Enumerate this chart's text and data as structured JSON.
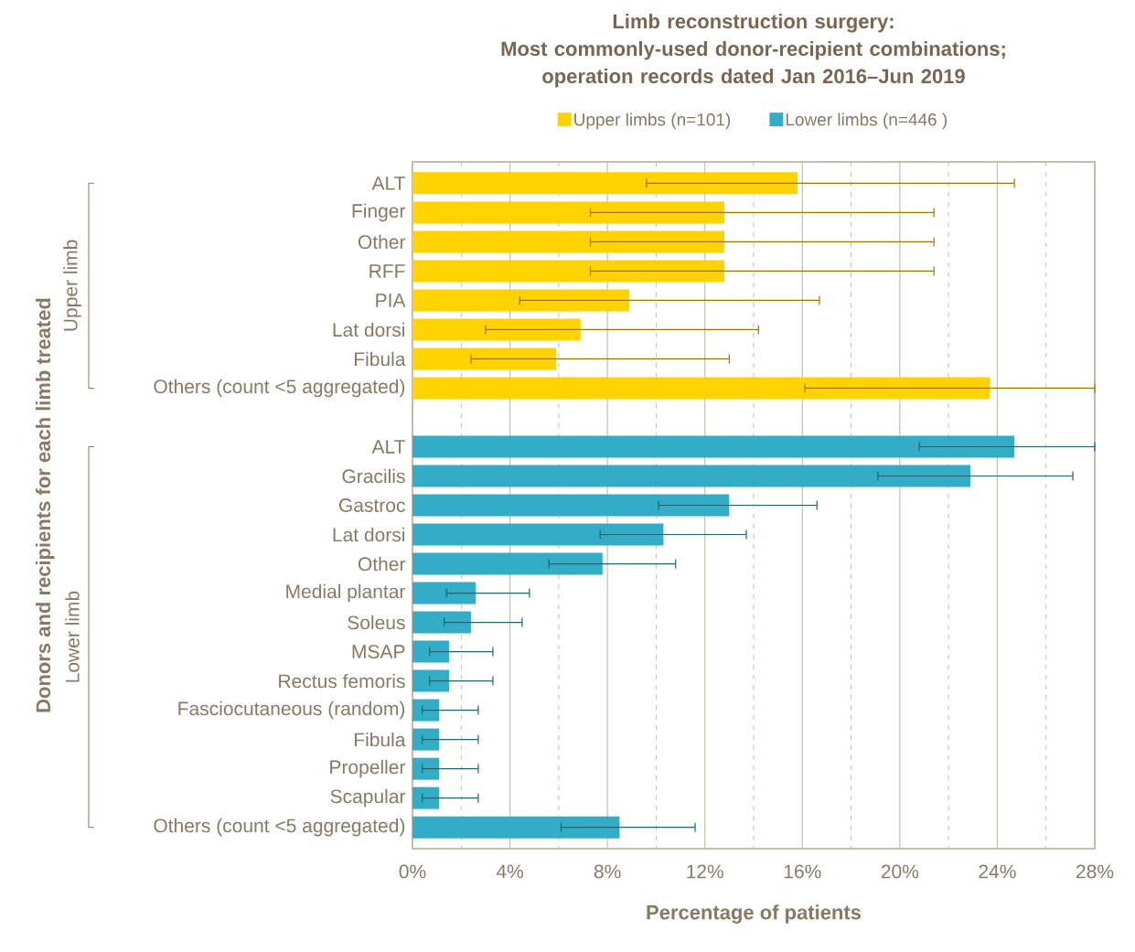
{
  "chart_data": {
    "type": "bar",
    "orientation": "horizontal",
    "title": "Limb reconstruction surgery:",
    "subtitle": "Most commonly-used donor-recipient combinations; operation records dated Jan 2016–Jun 2019",
    "xlabel": "Percentage of patients",
    "ylabel": "Donors and recipients for each limb treated",
    "categories": [
      "ALT",
      "Finger",
      "Other",
      "RFF",
      "PIA",
      "Lat dorsi",
      "Fibula",
      "Others (count <5 aggregated)",
      null,
      "ALT",
      "Gracilis",
      "Gastroc",
      "Lat dorsi",
      "Other",
      "Medial plantar",
      "Soleus",
      "MSAP",
      "Rectus femoris",
      "Fasciocutaneous (random)",
      "Fibula",
      "Propeller",
      "Scapular",
      "Others (count <5 aggregated)"
    ],
    "series": [
      {
        "name": "Upper limbs (n=101)",
        "color": "#ffd200",
        "values": [
          15.8,
          12.8,
          12.8,
          12.8,
          8.9,
          6.9,
          5.9,
          23.7,
          null,
          null,
          null,
          null,
          null,
          null,
          null,
          null,
          null,
          null,
          null,
          null,
          null,
          null,
          null
        ],
        "errors": [
          [
            9.6,
            24.7
          ],
          [
            7.3,
            21.4
          ],
          [
            7.3,
            21.4
          ],
          [
            7.3,
            21.4
          ],
          [
            4.4,
            16.7
          ],
          [
            3.0,
            14.2
          ],
          [
            2.4,
            13.0
          ],
          [
            16.1,
            28
          ],
          null,
          null,
          null,
          null,
          null,
          null,
          null,
          null,
          null,
          null,
          null,
          null,
          null,
          null,
          null
        ]
      },
      {
        "name": "Lower limbs (n=446 )",
        "color": "#33acc7",
        "values": [
          null,
          null,
          null,
          null,
          null,
          null,
          null,
          null,
          null,
          24.7,
          22.9,
          13.0,
          10.3,
          7.8,
          2.6,
          2.4,
          1.5,
          1.5,
          1.1,
          1.1,
          1.1,
          1.1,
          8.5
        ],
        "errors": [
          null,
          null,
          null,
          null,
          null,
          null,
          null,
          null,
          null,
          [
            20.8,
            28
          ],
          [
            19.1,
            27.1
          ],
          [
            10.1,
            16.6
          ],
          [
            7.7,
            13.7
          ],
          [
            5.6,
            10.8
          ],
          [
            1.4,
            4.8
          ],
          [
            1.3,
            4.5
          ],
          [
            0.7,
            3.3
          ],
          [
            0.7,
            3.3
          ],
          [
            0.4,
            2.7
          ],
          [
            0.4,
            2.7
          ],
          [
            0.4,
            2.7
          ],
          [
            0.4,
            2.7
          ],
          [
            6.1,
            11.6
          ]
        ]
      }
    ],
    "annotations": [
      "Upper limb",
      "Lower limb"
    ],
    "xlim": [
      0,
      28
    ],
    "xticks": [
      {
        "value": 0,
        "label": "0%"
      },
      {
        "value": 4,
        "label": "4%"
      },
      {
        "value": 8,
        "label": "8%"
      },
      {
        "value": 12,
        "label": "12%"
      },
      {
        "value": 16,
        "label": "16%"
      },
      {
        "value": 20,
        "label": "20%"
      },
      {
        "value": 24,
        "label": "24%"
      },
      {
        "value": 28,
        "label": "28%"
      }
    ],
    "grid": "x",
    "legend": "top"
  }
}
